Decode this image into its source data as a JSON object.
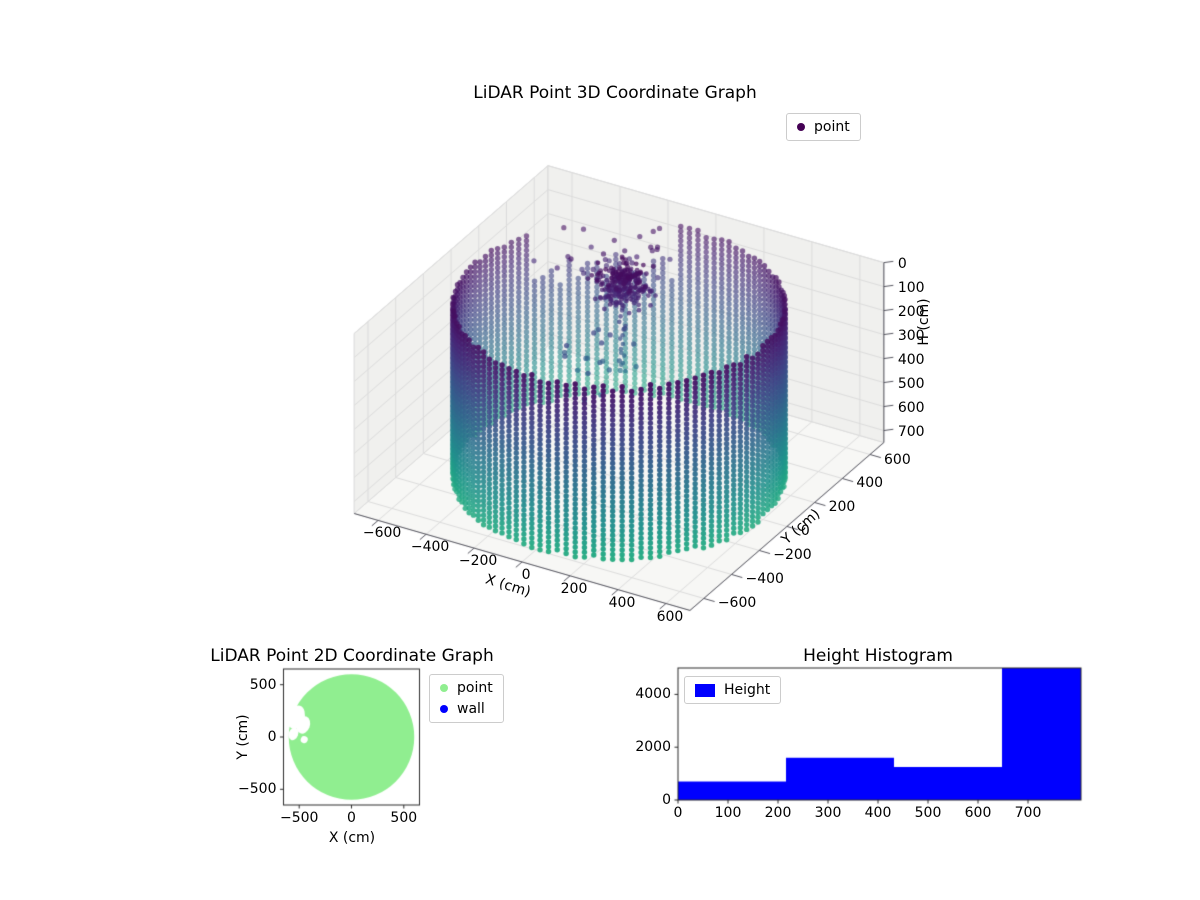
{
  "figure": {
    "background": "#ffffff"
  },
  "plot3d": {
    "title": "LiDAR Point 3D Coordinate Graph",
    "xlabel": "X (cm)",
    "ylabel": "Y (cm)",
    "zlabel": "H (cm)",
    "legend": [
      {
        "label": "point",
        "color": "#440154"
      }
    ],
    "xticks": [
      -600,
      -400,
      -200,
      0,
      200,
      400,
      600
    ],
    "yticks": [
      -600,
      -400,
      -200,
      0,
      200,
      400,
      600
    ],
    "zticks": [
      0,
      100,
      200,
      300,
      400,
      500,
      600,
      700
    ],
    "chart_data": {
      "type": "scatter3d",
      "series": [
        {
          "name": "point"
        }
      ],
      "xlim": [
        -700,
        700
      ],
      "ylim": [
        -700,
        700
      ],
      "h_lim": [
        0,
        750
      ],
      "h_axis_inverted": true,
      "colormap": "viridis",
      "color_by": "height H (dark purple = 0 cm at top rim, teal = ~750 cm at floor)",
      "wall": {
        "shape": "cylinder of vertical dotted point columns",
        "radius_cm": 600,
        "columns": 110,
        "h_top_cm": 20,
        "h_bottom_cm": 745,
        "dot_step_cm": 20,
        "gap": {
          "azimuth_deg": [
            100,
            152
          ],
          "h_top_range_cm": [
            150,
            280
          ],
          "noise_points": 30,
          "noise_h_range_cm": [
            20,
            170
          ],
          "noise_radius_range_cm": [
            400,
            600
          ]
        }
      },
      "cluster": {
        "center": {
          "x": -100,
          "y": 200
        },
        "sigma_cm": 45,
        "h_range_cm": [
          5,
          135
        ],
        "points": 260
      },
      "drop_column": {
        "x": -100,
        "y": 200,
        "h_range_cm": [
          150,
          430
        ],
        "points": 16
      },
      "mid_scatter": {
        "x_range": [
          -260,
          -40
        ],
        "y_range": [
          -60,
          260
        ],
        "h_range_cm": [
          230,
          480
        ],
        "points": 22
      }
    }
  },
  "plot2d": {
    "title": "LiDAR Point 2D Coordinate Graph",
    "xlabel": "X (cm)",
    "ylabel": "Y (cm)",
    "legend": [
      {
        "label": "point",
        "color": "#90ee90"
      },
      {
        "label": "wall",
        "color": "#0000ff"
      }
    ],
    "xticks": [
      -500,
      0,
      500
    ],
    "yticks": [
      500,
      0,
      -500
    ],
    "chart_data": {
      "type": "scatter",
      "xlim": [
        -650,
        650
      ],
      "ylim": [
        -650,
        650
      ],
      "disc": {
        "center": {
          "x": 0,
          "y": 0
        },
        "radius_cm": 600,
        "color": "#90ee90",
        "description": "dense filled disc of scan points"
      },
      "voids": [
        {
          "x": -530,
          "y": 190,
          "rx": 80,
          "ry": 115
        },
        {
          "x": -460,
          "y": 115,
          "rx": 62,
          "ry": 85
        },
        {
          "x": -555,
          "y": 30,
          "rx": 45,
          "ry": 62
        },
        {
          "x": -452,
          "y": -25,
          "rx": 34,
          "ry": 34
        }
      ]
    }
  },
  "hist": {
    "title": "Height Histogram",
    "legend": [
      {
        "label": "Height",
        "color": "#0000ff"
      }
    ],
    "xticks": [
      0,
      100,
      200,
      300,
      400,
      500,
      600,
      700
    ],
    "yticks": [
      0,
      2000,
      4000
    ],
    "chart_data": {
      "type": "histogram",
      "bin_edges": [
        0,
        216,
        432,
        648,
        864
      ],
      "counts": [
        700,
        1600,
        1250,
        5000
      ],
      "xlim": [
        0,
        806
      ],
      "ylim": [
        0,
        5000
      ],
      "bar_color": "#0000ff"
    }
  }
}
